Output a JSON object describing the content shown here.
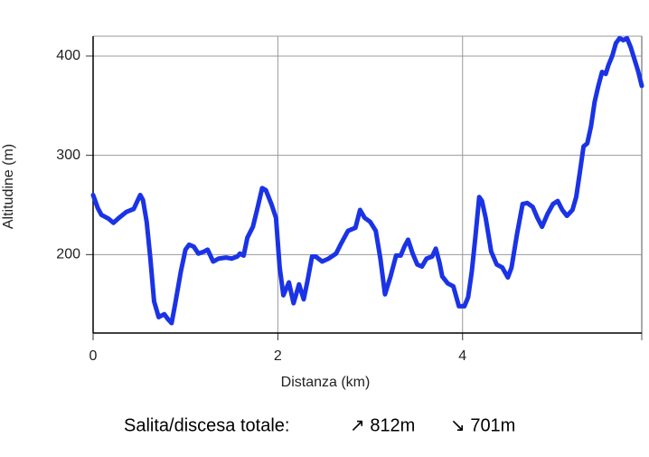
{
  "chart_data": {
    "type": "line",
    "x_label": "Distanza (km)",
    "y_label": "Altitudine (m)",
    "annotations": [
      "Salita/discesa totale:",
      "↗ 812m",
      "↘ 701m"
    ],
    "xlim": [
      0,
      5.94
    ],
    "ylim": [
      121,
      420
    ],
    "xticks": [
      0,
      2,
      4
    ],
    "yticks": [
      200,
      300,
      400
    ],
    "grid": true,
    "series": [
      {
        "color": "#1a33e6",
        "x": [
          0,
          0.05,
          0.09,
          0.17,
          0.22,
          0.28,
          0.36,
          0.44,
          0.48,
          0.51,
          0.54,
          0.58,
          0.62,
          0.66,
          0.71,
          0.77,
          0.81,
          0.85,
          0.89,
          0.95,
          1.0,
          1.04,
          1.09,
          1.14,
          1.2,
          1.24,
          1.3,
          1.36,
          1.44,
          1.5,
          1.56,
          1.59,
          1.63,
          1.67,
          1.73,
          1.78,
          1.83,
          1.87,
          1.93,
          1.98,
          2.02,
          2.06,
          2.12,
          2.17,
          2.23,
          2.28,
          2.32,
          2.37,
          2.41,
          2.48,
          2.55,
          2.63,
          2.69,
          2.76,
          2.84,
          2.89,
          2.94,
          3.0,
          3.06,
          3.11,
          3.16,
          3.22,
          3.28,
          3.33,
          3.37,
          3.41,
          3.46,
          3.51,
          3.56,
          3.61,
          3.67,
          3.71,
          3.75,
          3.78,
          3.84,
          3.9,
          3.96,
          4.02,
          4.06,
          4.1,
          4.14,
          4.18,
          4.21,
          4.25,
          4.31,
          4.37,
          4.43,
          4.49,
          4.53,
          4.59,
          4.65,
          4.7,
          4.76,
          4.81,
          4.86,
          4.92,
          4.98,
          5.03,
          5.08,
          5.13,
          5.19,
          5.23,
          5.27,
          5.31,
          5.35,
          5.39,
          5.43,
          5.47,
          5.51,
          5.55,
          5.58,
          5.62,
          5.66,
          5.7,
          5.74,
          5.78,
          5.82,
          5.86,
          5.9,
          5.94
        ],
        "values": [
          260,
          247,
          240,
          236,
          232,
          237,
          243,
          246,
          254,
          260,
          255,
          233,
          196,
          153,
          137,
          140,
          135,
          131,
          151,
          183,
          205,
          210,
          208,
          201,
          203,
          205,
          193,
          196,
          197,
          196,
          198,
          201,
          199,
          217,
          228,
          247,
          267,
          265,
          251,
          237,
          187,
          159,
          172,
          151,
          170,
          155,
          173,
          198,
          198,
          193,
          196,
          201,
          212,
          224,
          227,
          245,
          237,
          233,
          224,
          196,
          160,
          178,
          199,
          199,
          208,
          215,
          201,
          190,
          188,
          196,
          198,
          206,
          192,
          178,
          171,
          168,
          148,
          148,
          157,
          183,
          219,
          258,
          254,
          237,
          203,
          190,
          187,
          177,
          187,
          221,
          251,
          252,
          248,
          237,
          228,
          241,
          251,
          254,
          245,
          239,
          245,
          258,
          283,
          309,
          312,
          329,
          354,
          370,
          384,
          382,
          391,
          400,
          413,
          418,
          416,
          418,
          409,
          397,
          385,
          370
        ]
      }
    ]
  }
}
